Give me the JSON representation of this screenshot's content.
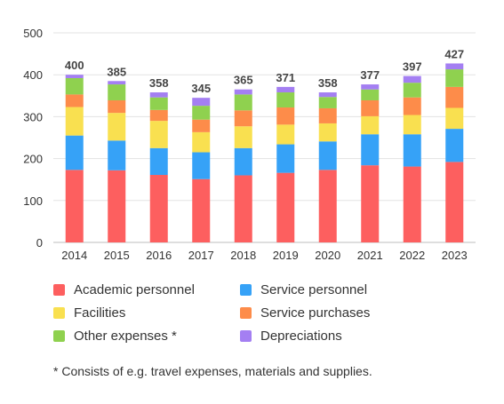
{
  "chart_data": {
    "type": "bar",
    "stacked": true,
    "categories": [
      "2014",
      "2015",
      "2016",
      "2017",
      "2018",
      "2019",
      "2020",
      "2021",
      "2022",
      "2023"
    ],
    "totals": [
      "400",
      "385",
      "358",
      "345",
      "365",
      "371",
      "358",
      "377",
      "397",
      "427"
    ],
    "series": [
      {
        "name": "Academic personnel",
        "color": "#fd5f5f",
        "values": [
          173,
          172,
          161,
          151,
          160,
          166,
          173,
          184,
          181,
          192
        ]
      },
      {
        "name": "Service personnel",
        "color": "#36a2f7",
        "values": [
          82,
          71,
          64,
          64,
          65,
          68,
          68,
          74,
          77,
          79
        ]
      },
      {
        "name": "Facilities",
        "color": "#f9e050",
        "values": [
          68,
          66,
          65,
          48,
          52,
          47,
          43,
          43,
          46,
          50
        ]
      },
      {
        "name": "Service purchases",
        "color": "#fd8c4a",
        "values": [
          30,
          30,
          26,
          30,
          38,
          41,
          36,
          38,
          42,
          50
        ]
      },
      {
        "name": "Other expenses *",
        "color": "#8fd14f",
        "values": [
          39,
          38,
          30,
          33,
          38,
          36,
          27,
          26,
          35,
          42
        ]
      },
      {
        "name": "Depreciations",
        "color": "#a47ff2",
        "values": [
          8,
          8,
          12,
          19,
          12,
          13,
          11,
          12,
          16,
          14
        ]
      }
    ],
    "ylim": [
      0,
      500
    ],
    "yticks": [
      "0",
      "100",
      "200",
      "300",
      "400",
      "500"
    ],
    "grid": true,
    "legend_position": "bottom",
    "footnote": "* Consists of e.g. travel expenses, materials and supplies."
  }
}
